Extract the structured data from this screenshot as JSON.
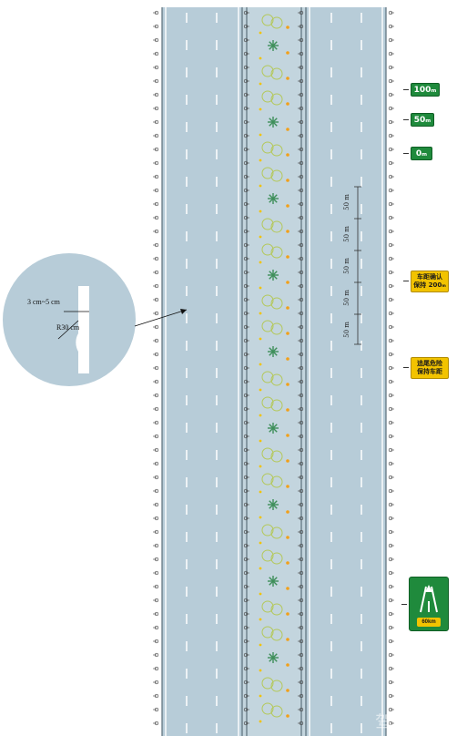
{
  "signs": {
    "dist_100": "100ₘ",
    "dist_50": "50ₘ",
    "dist_0": "0ₘ",
    "yellow1_line1": "车距确认",
    "yellow1_line2": "保持 200ₘ",
    "yellow2_line1": "追尾危险",
    "yellow2_line2": "保持车距",
    "exit_speed": "60km"
  },
  "distance_markers": [
    "50 m",
    "50 m",
    "50 m",
    "50 m",
    "50 m"
  ],
  "detail": {
    "width_label": "3 cm~5 cm",
    "radius_label": "R30 cm"
  },
  "watermark": "驾考宝典",
  "colors": {
    "road": "#b7ccd8",
    "median": "#c3d5de",
    "lane_line": "#ffffff",
    "green_sign": "#1f8a3c",
    "yellow_sign": "#f2c300"
  }
}
